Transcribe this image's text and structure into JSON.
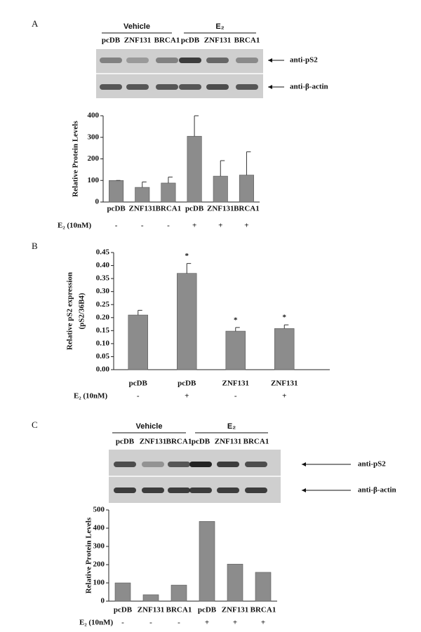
{
  "panel_labels": [
    "A",
    "B",
    "C"
  ],
  "blots": [
    {
      "groups": [
        "Vehicle",
        "E₂"
      ],
      "lanes": [
        "pcDB",
        "ZNF131",
        "BRCA1",
        "pcDB",
        "ZNF131",
        "BRCA1"
      ],
      "rows": [
        "anti-pS2",
        "anti-β-actin"
      ]
    },
    {
      "groups": [
        "Vehicle",
        "E₂"
      ],
      "lanes": [
        "pcDB",
        "ZNF131",
        "BRCA1",
        "pcDB",
        "ZNF131",
        "BRCA1"
      ],
      "rows": [
        "anti-pS2",
        "anti-β-actin"
      ]
    }
  ],
  "chart_data": [
    {
      "type": "bar",
      "y_label": [
        "Relative Protein Levels"
      ],
      "categories": [
        "pcDB",
        "ZNF131",
        "BRCA1",
        "pcDB",
        "ZNF131",
        "BRCA1"
      ],
      "values": [
        100,
        68,
        88,
        305,
        120,
        125
      ],
      "errors": [
        0,
        25,
        28,
        95,
        72,
        108
      ],
      "color": "#8c8c8c",
      "ylim": [
        0,
        400
      ],
      "yticks": [
        0,
        100,
        200,
        300,
        400
      ],
      "treatment_label": "E₂ (10nM)",
      "treatment": [
        "-",
        "-",
        "-",
        "+",
        "+",
        "+"
      ]
    },
    {
      "type": "bar",
      "y_label": [
        "Relative pS2 expression",
        "(pS2/36B4)"
      ],
      "categories": [
        "pcDB",
        "pcDB",
        "ZNF131",
        "ZNF131"
      ],
      "values": [
        0.21,
        0.37,
        0.148,
        0.158
      ],
      "errors": [
        0.018,
        0.038,
        0.014,
        0.014
      ],
      "annotations": [
        null,
        "*",
        "*",
        "*"
      ],
      "color": "#8c8c8c",
      "ylim": [
        0,
        0.45
      ],
      "yticks": [
        {
          "value": 0,
          "label": "0.00"
        },
        {
          "value": 0.05,
          "label": "0.05"
        },
        {
          "value": 0.1,
          "label": "0.10"
        },
        {
          "value": 0.15,
          "label": "0.15"
        },
        {
          "value": 0.2,
          "label": "0.20"
        },
        {
          "value": 0.25,
          "label": "0.25"
        },
        {
          "value": 0.3,
          "label": "0.30"
        },
        {
          "value": 0.35,
          "label": "0.35"
        },
        {
          "value": 0.4,
          "label": "0.40"
        },
        {
          "value": 0.45,
          "label": "0.45"
        }
      ],
      "treatment_label": "E₂ (10nM)",
      "treatment": [
        "-",
        "+",
        "-",
        "+"
      ]
    },
    {
      "type": "bar",
      "y_label": [
        "Relative Protein Levels"
      ],
      "categories": [
        "pcDB",
        "ZNF131",
        "BRCA1",
        "pcDB",
        "ZNF131",
        "BRCA1"
      ],
      "values": [
        100,
        35,
        88,
        437,
        203,
        158
      ],
      "color": "#8c8c8c",
      "ylim": [
        0,
        500
      ],
      "yticks": [
        0,
        100,
        200,
        300,
        400,
        500
      ],
      "treatment_label": "E₂ (10nM)",
      "treatment": [
        "-",
        "-",
        "-",
        "+",
        "+",
        "+"
      ]
    }
  ]
}
